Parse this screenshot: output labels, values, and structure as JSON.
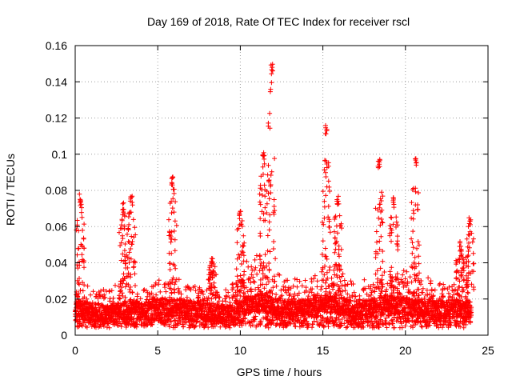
{
  "chart_data": {
    "type": "scatter",
    "title": "Day 169 of 2018, Rate Of TEC Index for receiver rscl",
    "xlabel": "GPS time / hours",
    "ylabel": "ROTI / TECUs",
    "xlim": [
      0,
      25
    ],
    "ylim": [
      0,
      0.16
    ],
    "xticks": [
      0,
      5,
      10,
      15,
      20,
      25
    ],
    "xtick_labels": [
      "0",
      "5",
      "10",
      "15",
      "20",
      "25"
    ],
    "yticks": [
      0,
      0.02,
      0.04,
      0.06,
      0.08,
      0.1,
      0.12,
      0.14,
      0.16
    ],
    "ytick_labels": [
      "0",
      "0.02",
      "0.04",
      "0.06",
      "0.08",
      "0.1",
      "0.12",
      "0.14",
      "0.16"
    ],
    "grid": true,
    "marker": "+",
    "color": "#ff0000",
    "series": [
      {
        "name": "ROTI",
        "baseline_profile": {
          "x": [
            0,
            1,
            2,
            3,
            4,
            5,
            6,
            7,
            8,
            9,
            10,
            11,
            12,
            13,
            14,
            15,
            16,
            17,
            18,
            19,
            20,
            21,
            22,
            23,
            24
          ],
          "typical": [
            0.015,
            0.013,
            0.012,
            0.014,
            0.013,
            0.016,
            0.015,
            0.014,
            0.013,
            0.012,
            0.015,
            0.018,
            0.016,
            0.014,
            0.015,
            0.018,
            0.016,
            0.014,
            0.015,
            0.017,
            0.016,
            0.015,
            0.014,
            0.015,
            0.014
          ],
          "upper": [
            0.03,
            0.025,
            0.025,
            0.03,
            0.025,
            0.03,
            0.03,
            0.028,
            0.025,
            0.025,
            0.035,
            0.045,
            0.035,
            0.03,
            0.03,
            0.04,
            0.035,
            0.03,
            0.03,
            0.035,
            0.035,
            0.03,
            0.03,
            0.03,
            0.03
          ]
        },
        "peaks": [
          {
            "x": 0.3,
            "y": 0.078
          },
          {
            "x": 2.9,
            "y": 0.074
          },
          {
            "x": 3.4,
            "y": 0.077
          },
          {
            "x": 5.9,
            "y": 0.089
          },
          {
            "x": 8.3,
            "y": 0.043
          },
          {
            "x": 10.0,
            "y": 0.07
          },
          {
            "x": 11.4,
            "y": 0.102
          },
          {
            "x": 11.9,
            "y": 0.15
          },
          {
            "x": 15.2,
            "y": 0.117
          },
          {
            "x": 15.9,
            "y": 0.078
          },
          {
            "x": 18.4,
            "y": 0.099
          },
          {
            "x": 19.3,
            "y": 0.078
          },
          {
            "x": 20.6,
            "y": 0.099
          },
          {
            "x": 23.3,
            "y": 0.052
          },
          {
            "x": 23.9,
            "y": 0.066
          }
        ]
      }
    ]
  }
}
